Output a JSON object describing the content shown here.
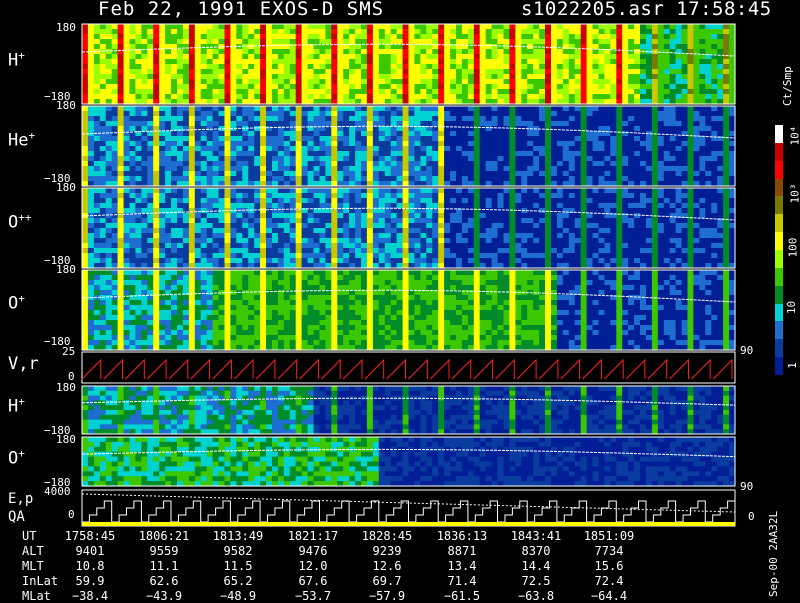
{
  "header": {
    "title": "Feb 22, 1991   EXOS-D SMS",
    "file": "s1022205.asr  17:58:45"
  },
  "panels": [
    {
      "label": "H",
      "sup": "+",
      "top_tick": "180",
      "bottom_tick": "−180"
    },
    {
      "label": "He",
      "sup": "+",
      "top_tick": "180",
      "bottom_tick": "−180"
    },
    {
      "label": "O",
      "sup": "++",
      "top_tick": "180",
      "bottom_tick": "−180"
    },
    {
      "label": "O",
      "sup": "+",
      "top_tick": "180",
      "bottom_tick": "−180"
    }
  ],
  "vr_panel": {
    "label": "V,r",
    "top_tick": "25",
    "zero_tick": "0",
    "right_tick": "90"
  },
  "lower_panels": [
    {
      "label": "H",
      "sup": "+",
      "top_tick": "180",
      "bottom_tick": "−180"
    },
    {
      "label": "O",
      "sup": "+",
      "top_tick": "180",
      "bottom_tick": "−180",
      "right_tick": "90"
    }
  ],
  "ep_panel": {
    "label1": "E,p",
    "label2": "QA",
    "top_tick": "4000",
    "zero_tick": "0",
    "right_tick": "0"
  },
  "colorbar": {
    "unit": "Ct/Smp",
    "labels": [
      "10⁴",
      "10³",
      "100",
      "10",
      "1"
    ],
    "colors": [
      "#ffffff",
      "#c80000",
      "#ff0000",
      "#8a4a00",
      "#7a7a00",
      "#c8c800",
      "#ffff00",
      "#9bff00",
      "#3cc800",
      "#008c28",
      "#00d2d2",
      "#1e6ed2",
      "#0a3ca0",
      "#001e96"
    ]
  },
  "footer": {
    "rows": [
      {
        "label": "UT",
        "values": [
          "1758:45",
          "1806:21",
          "1813:49",
          "1821:17",
          "1828:45",
          "1836:13",
          "1843:41",
          "1851:09"
        ]
      },
      {
        "label": "ALT",
        "values": [
          "9401",
          "9559",
          "9582",
          "9476",
          "9239",
          "8871",
          "8370",
          "7734"
        ]
      },
      {
        "label": "MLT",
        "values": [
          "10.8",
          "11.1",
          "11.5",
          "12.0",
          "12.6",
          "13.4",
          "14.4",
          "15.6"
        ]
      },
      {
        "label": "InLat",
        "values": [
          "59.9",
          "62.6",
          "65.2",
          "67.6",
          "69.7",
          "71.4",
          "72.5",
          "72.4"
        ]
      },
      {
        "label": "MLat",
        "values": [
          "−38.4",
          "−43.9",
          "−48.9",
          "−53.7",
          "−57.9",
          "−61.5",
          "−63.8",
          "−64.4"
        ]
      }
    ],
    "side_stamp": "Sep-00  2AA32L"
  }
}
